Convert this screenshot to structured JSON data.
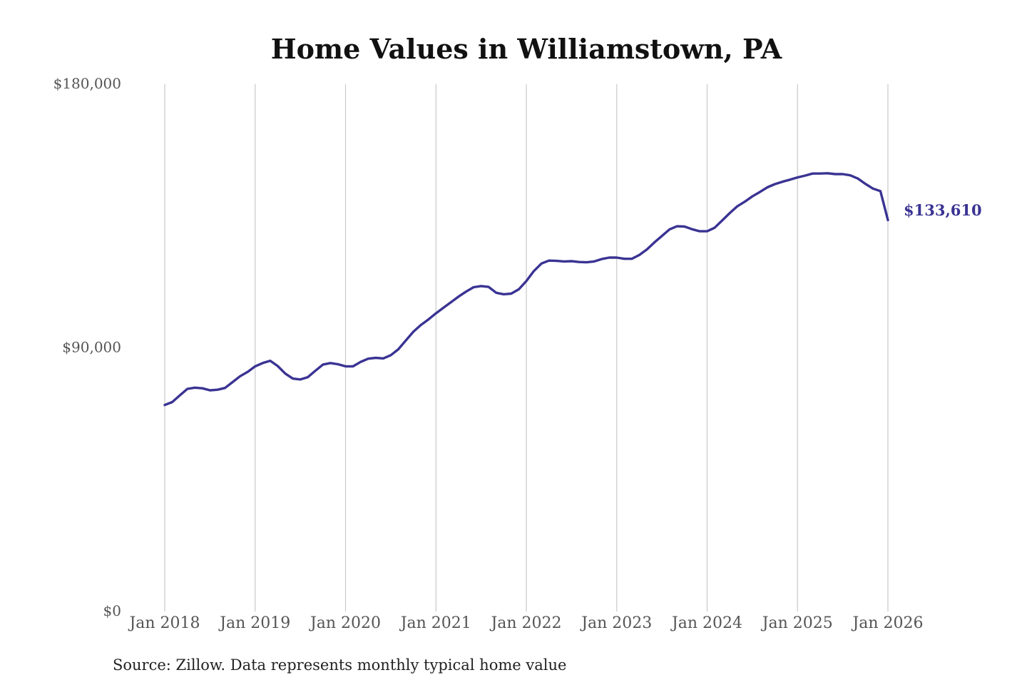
{
  "chart_data": {
    "type": "line",
    "title": "Home Values in Williamstown, PA",
    "xlabel": "",
    "ylabel": "",
    "ylim": [
      0,
      180000
    ],
    "y_ticks": [
      {
        "value": 0,
        "label": "$0"
      },
      {
        "value": 90000,
        "label": "$90,000"
      },
      {
        "value": 180000,
        "label": "$180,000"
      }
    ],
    "x_ticks": [
      {
        "value": 2018,
        "label": "Jan 2018"
      },
      {
        "value": 2019,
        "label": "Jan 2019"
      },
      {
        "value": 2020,
        "label": "Jan 2020"
      },
      {
        "value": 2021,
        "label": "Jan 2021"
      },
      {
        "value": 2022,
        "label": "Jan 2022"
      },
      {
        "value": 2023,
        "label": "Jan 2023"
      },
      {
        "value": 2024,
        "label": "Jan 2024"
      },
      {
        "value": 2025,
        "label": "Jan 2025"
      },
      {
        "value": 2026,
        "label": "Jan 2026"
      }
    ],
    "xlim": [
      2018,
      2026
    ],
    "vertical_grid": true,
    "horizontal_grid": false,
    "line_color": "#3a3393",
    "series": [
      {
        "x": [
          2018.0,
          2018.083,
          2018.167,
          2018.25,
          2018.333,
          2018.417,
          2018.5,
          2018.583,
          2018.667,
          2018.75,
          2018.833,
          2018.917,
          2019.0,
          2019.083,
          2019.167,
          2019.25,
          2019.333,
          2019.417,
          2019.5,
          2019.583,
          2019.667,
          2019.75,
          2019.833,
          2019.917,
          2020.0,
          2020.083,
          2020.167,
          2020.25,
          2020.333,
          2020.417,
          2020.5,
          2020.583,
          2020.667,
          2020.75,
          2020.833,
          2020.917,
          2021.0,
          2021.083,
          2021.167,
          2021.25,
          2021.333,
          2021.417,
          2021.5,
          2021.583,
          2021.667,
          2021.75,
          2021.833,
          2021.917,
          2022.0,
          2022.083,
          2022.167,
          2022.25,
          2022.333,
          2022.417,
          2022.5,
          2022.583,
          2022.667,
          2022.75,
          2022.833,
          2022.917,
          2023.0,
          2023.083,
          2023.167,
          2023.25,
          2023.333,
          2023.417,
          2023.5,
          2023.583,
          2023.667,
          2023.75,
          2023.833,
          2023.917,
          2024.0,
          2024.083,
          2024.167,
          2024.25,
          2024.333,
          2024.417,
          2024.5,
          2024.583,
          2024.667,
          2024.75,
          2024.833,
          2024.917,
          2025.0,
          2025.083,
          2025.167,
          2025.25,
          2025.333,
          2025.417,
          2025.5,
          2025.583,
          2025.667,
          2025.75,
          2025.833,
          2025.917,
          2026.0
        ],
        "y": [
          70500,
          71500,
          73800,
          76000,
          76400,
          76200,
          75500,
          75700,
          76300,
          78300,
          80300,
          81800,
          83700,
          84800,
          85600,
          83800,
          81200,
          79500,
          79200,
          80000,
          82200,
          84300,
          84800,
          84400,
          83700,
          83700,
          85200,
          86300,
          86600,
          86400,
          87500,
          89500,
          92500,
          95500,
          97800,
          99700,
          101800,
          103700,
          105600,
          107500,
          109200,
          110700,
          111100,
          110800,
          108800,
          108300,
          108500,
          110000,
          112800,
          116200,
          118800,
          119800,
          119700,
          119500,
          119600,
          119300,
          119200,
          119500,
          120300,
          120800,
          120800,
          120400,
          120400,
          121700,
          123600,
          126000,
          128200,
          130400,
          131500,
          131400,
          130500,
          129800,
          129800,
          131000,
          133500,
          136000,
          138300,
          139900,
          141700,
          143200,
          144800,
          145900,
          146700,
          147400,
          148200,
          148800,
          149500,
          149500,
          149600,
          149300,
          149300,
          148900,
          147800,
          146000,
          144400,
          143500,
          133610
        ]
      }
    ],
    "end_label": "$133,610"
  },
  "source_note": "Source: Zillow. Data represents monthly typical home value"
}
